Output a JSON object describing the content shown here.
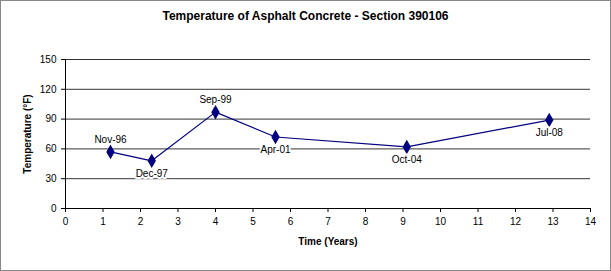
{
  "chart_data": {
    "type": "line",
    "title": "Temperature of Asphalt Concrete - Section 390106",
    "x_label": "Time (Years)",
    "y_label": "Temperature (°F)",
    "x": [
      1.2,
      2.3,
      4.0,
      5.6,
      9.1,
      12.9
    ],
    "values": [
      57,
      48,
      97,
      72,
      62,
      89
    ],
    "point_labels": [
      "Nov-96",
      "Dec-97",
      "Sep-99",
      "Apr-01",
      "Oct-04",
      "Jul-08"
    ],
    "color": "#000080",
    "marker": "diamond",
    "xlim": [
      0,
      14
    ],
    "xticks": [
      0,
      1,
      2,
      3,
      4,
      5,
      6,
      7,
      8,
      9,
      10,
      11,
      12,
      13,
      14
    ],
    "ylim": [
      0,
      150
    ],
    "yticks": [
      0,
      30,
      60,
      90,
      120,
      150
    ],
    "grid": true
  }
}
